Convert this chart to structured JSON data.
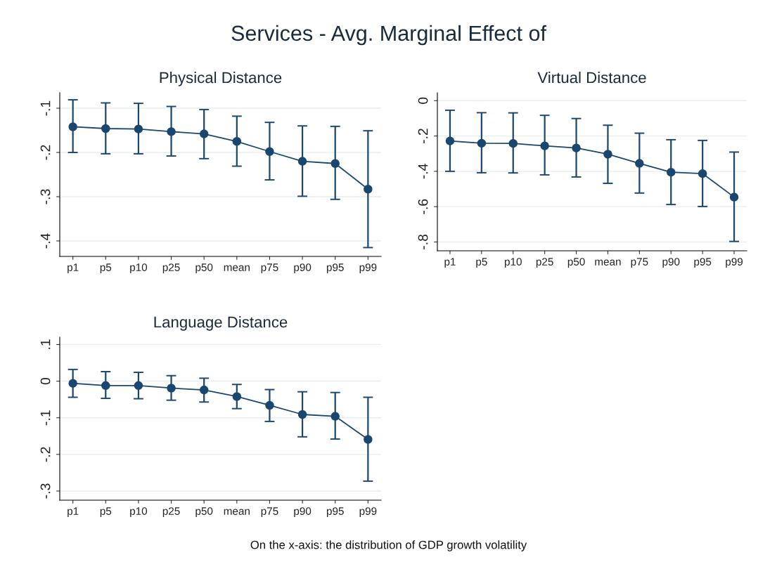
{
  "chart_data": [
    {
      "type": "line",
      "title": "Physical Distance",
      "annotations": [
        "Services - Avg. Marginal Effect of",
        "On the x-axis: the distribution of GDP growth volatility"
      ],
      "categories": [
        "p1",
        "p5",
        "p10",
        "p25",
        "p50",
        "mean",
        "p75",
        "p90",
        "p95",
        "p99"
      ],
      "series": [
        {
          "color": "#1a476f",
          "values": [
            -0.142,
            -0.146,
            -0.147,
            -0.153,
            -0.158,
            -0.175,
            -0.198,
            -0.22,
            -0.225,
            -0.283
          ],
          "errors": [
            [
              -0.2,
              -0.081
            ],
            [
              -0.203,
              -0.088
            ],
            [
              -0.203,
              -0.089
            ],
            [
              -0.208,
              -0.096
            ],
            [
              -0.214,
              -0.103
            ],
            [
              -0.231,
              -0.118
            ],
            [
              -0.262,
              -0.132
            ],
            [
              -0.299,
              -0.14
            ],
            [
              -0.306,
              -0.141
            ],
            [
              -0.415,
              -0.151
            ]
          ]
        }
      ],
      "ylim": [
        -0.435,
        -0.065
      ],
      "yticks": [
        {
          "value": -0.4,
          "label": "-.4"
        },
        {
          "value": -0.3,
          "label": "-.3"
        },
        {
          "value": -0.2,
          "label": "-.2"
        },
        {
          "value": -0.1,
          "label": "-.1"
        }
      ],
      "grid": "y",
      "marker": "circle",
      "line_style": "solid"
    },
    {
      "type": "line",
      "title": "Virtual Distance",
      "categories": [
        "p1",
        "p5",
        "p10",
        "p25",
        "p50",
        "mean",
        "p75",
        "p90",
        "p95",
        "p99"
      ],
      "series": [
        {
          "color": "#1a476f",
          "values": [
            -0.228,
            -0.241,
            -0.242,
            -0.256,
            -0.268,
            -0.303,
            -0.355,
            -0.405,
            -0.413,
            -0.546
          ],
          "errors": [
            [
              -0.4,
              -0.054
            ],
            [
              -0.408,
              -0.068
            ],
            [
              -0.409,
              -0.069
            ],
            [
              -0.42,
              -0.083
            ],
            [
              -0.432,
              -0.101
            ],
            [
              -0.468,
              -0.139
            ],
            [
              -0.523,
              -0.184
            ],
            [
              -0.588,
              -0.221
            ],
            [
              -0.599,
              -0.225
            ],
            [
              -0.797,
              -0.291
            ]
          ]
        }
      ],
      "ylim": [
        -0.85,
        0.045
      ],
      "yticks": [
        {
          "value": -0.8,
          "label": "-.8"
        },
        {
          "value": -0.6,
          "label": "-.6"
        },
        {
          "value": -0.4,
          "label": "-.4"
        },
        {
          "value": -0.2,
          "label": "-.2"
        },
        0
      ],
      "grid": "y",
      "marker": "circle",
      "line_style": "solid"
    },
    {
      "type": "line",
      "title": "Language Distance",
      "categories": [
        "p1",
        "p5",
        "p10",
        "p25",
        "p50",
        "mean",
        "p75",
        "p90",
        "p95",
        "p99"
      ],
      "series": [
        {
          "color": "#1a476f",
          "values": [
            -0.006,
            -0.012,
            -0.012,
            -0.019,
            -0.024,
            -0.042,
            -0.066,
            -0.091,
            -0.096,
            -0.159
          ],
          "errors": [
            [
              -0.044,
              0.032
            ],
            [
              -0.047,
              0.026
            ],
            [
              -0.048,
              0.024
            ],
            [
              -0.052,
              0.015
            ],
            [
              -0.057,
              0.008
            ],
            [
              -0.075,
              -0.009
            ],
            [
              -0.11,
              -0.023
            ],
            [
              -0.152,
              -0.029
            ],
            [
              -0.158,
              -0.031
            ],
            [
              -0.273,
              -0.044
            ]
          ]
        }
      ],
      "ylim": [
        -0.325,
        0.12
      ],
      "yticks": [
        {
          "value": -0.3,
          "label": "-.3"
        },
        {
          "value": -0.2,
          "label": "-.2"
        },
        {
          "value": -0.1,
          "label": "-.1"
        },
        0,
        {
          "value": 0.1,
          "label": ".1"
        }
      ],
      "grid": "y",
      "marker": "circle",
      "line_style": "solid"
    }
  ]
}
